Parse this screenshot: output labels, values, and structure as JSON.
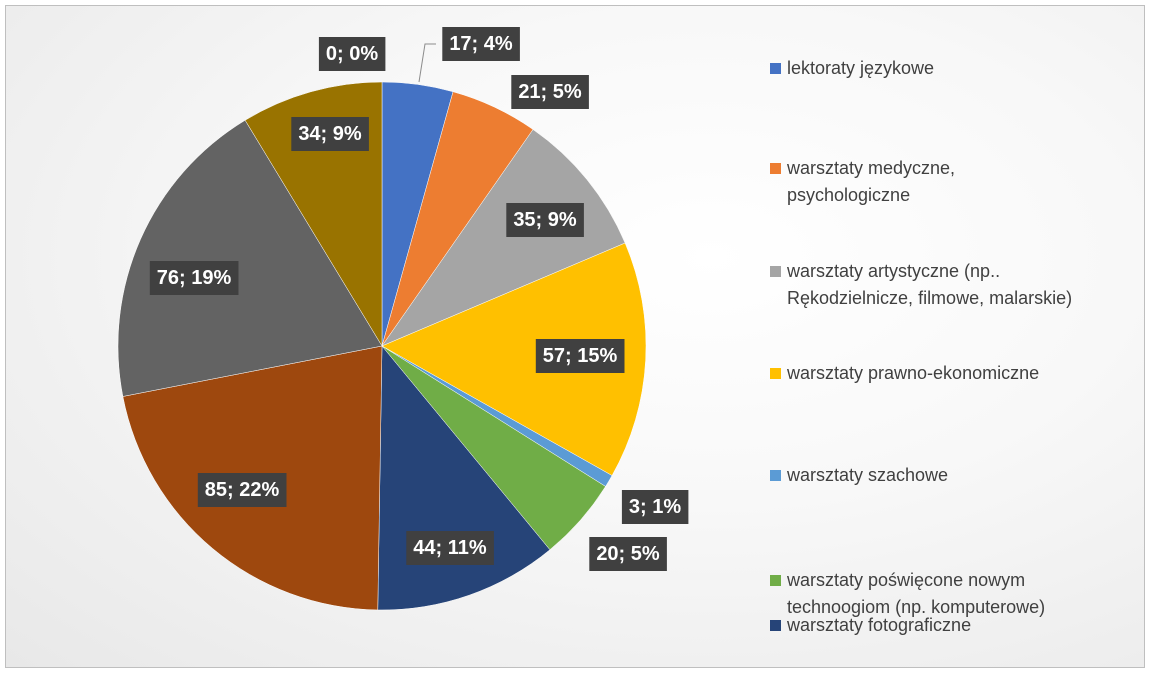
{
  "chart_data": {
    "type": "pie",
    "series": [
      {
        "values": [
          17,
          21,
          35,
          57,
          3,
          20,
          44,
          85,
          76,
          34,
          0
        ]
      }
    ],
    "slices": [
      {
        "label": "lektoraty językowe",
        "value": 17,
        "percent": "4%",
        "data_label": "17; 4%",
        "color": "#4472C4"
      },
      {
        "label": "warsztaty medyczne, psychologiczne",
        "value": 21,
        "percent": "5%",
        "data_label": "21; 5%",
        "color": "#ED7D31"
      },
      {
        "label": "warsztaty artystyczne (np.. Rękodzielnicze, filmowe, malarskie)",
        "value": 35,
        "percent": "9%",
        "data_label": "35; 9%",
        "color": "#A5A5A5"
      },
      {
        "label": "warsztaty prawno-ekonomiczne",
        "value": 57,
        "percent": "15%",
        "data_label": "57; 15%",
        "color": "#FFC000"
      },
      {
        "label": "warsztaty szachowe",
        "value": 3,
        "percent": "1%",
        "data_label": "3; 1%",
        "color": "#5B9BD5"
      },
      {
        "label": "warsztaty poświęcone nowym technoogiom (np. komputerowe)",
        "value": 20,
        "percent": "5%",
        "data_label": "20; 5%",
        "color": "#70AD47"
      },
      {
        "label": "warsztaty fotograficzne",
        "value": 44,
        "percent": "11%",
        "data_label": "44; 11%",
        "color": "#264478"
      },
      {
        "label": "",
        "value": 85,
        "percent": "22%",
        "data_label": "85; 22%",
        "color": "#9E480E"
      },
      {
        "label": "",
        "value": 76,
        "percent": "19%",
        "data_label": "76; 19%",
        "color": "#636363"
      },
      {
        "label": "",
        "value": 34,
        "percent": "9%",
        "data_label": "34; 9%",
        "color": "#997300"
      },
      {
        "label": "",
        "value": 0,
        "percent": "0%",
        "data_label": "0; 0%",
        "color": "#255E91"
      }
    ],
    "legend_position": "right",
    "legend": [
      {
        "text_lines": [
          "lektoraty językowe"
        ],
        "color": "#4472C4"
      },
      {
        "text_lines": [
          "warsztaty medyczne,",
          "psychologiczne"
        ],
        "color": "#ED7D31"
      },
      {
        "text_lines": [
          "warsztaty artystyczne (np..",
          "Rękodzielnicze, filmowe, malarskie)"
        ],
        "color": "#A5A5A5"
      },
      {
        "text_lines": [
          "warsztaty prawno-ekonomiczne"
        ],
        "color": "#FFC000"
      },
      {
        "text_lines": [
          "warsztaty szachowe"
        ],
        "color": "#5B9BD5"
      },
      {
        "text_lines": [
          "warsztaty poświęcone nowym",
          "technoogiom (np. komputerowe)"
        ],
        "color": "#70AD47"
      },
      {
        "text_lines": [
          "warsztaty fotograficzne"
        ],
        "color": "#264478"
      }
    ],
    "label_box_color": "#404040",
    "label_text_color": "#FFFFFF"
  }
}
